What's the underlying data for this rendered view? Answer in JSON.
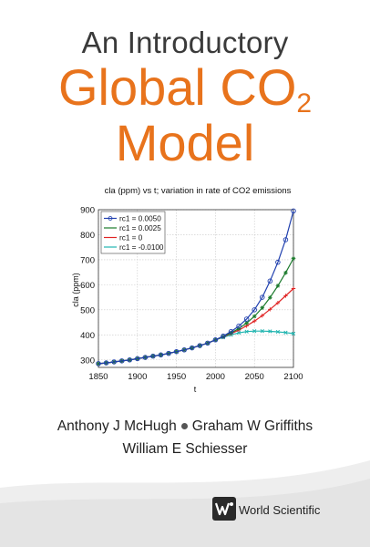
{
  "book": {
    "title_line1": "An Introductory",
    "title_line2": "Global CO",
    "title_subscript": "2",
    "title_line3": "Model",
    "authors": [
      "Anthony J McHugh",
      "Graham W Griffiths",
      "William E Schiesser"
    ],
    "publisher": "World Scientific"
  },
  "colors": {
    "title_accent": "#e8731c",
    "series_0050": "#1f3fae",
    "series_0025": "#1b7a2c",
    "series_0": "#e02424",
    "series_m0100": "#22b5b0"
  },
  "chart_data": {
    "type": "line",
    "title": "cla (ppm) vs t; variation in rate of CO2 emissions",
    "xlabel": "t",
    "ylabel": "cla (ppm)",
    "xlim": [
      1850,
      2100
    ],
    "ylim": [
      270,
      900
    ],
    "xticks": [
      1850,
      1900,
      1950,
      2000,
      2050,
      2100
    ],
    "yticks": [
      300,
      400,
      500,
      600,
      700,
      800,
      900
    ],
    "grid": true,
    "legend_position": "top-left",
    "x": [
      1850,
      1860,
      1870,
      1880,
      1890,
      1900,
      1910,
      1920,
      1930,
      1940,
      1950,
      1960,
      1970,
      1980,
      1990,
      2000,
      2010,
      2020,
      2030,
      2040,
      2050,
      2060,
      2070,
      2080,
      2090,
      2100
    ],
    "series": [
      {
        "name": "rc1 = 0.0050",
        "color": "#1f3fae",
        "marker": "o",
        "values": [
          285,
          288,
          292,
          296,
          300,
          305,
          310,
          315,
          320,
          326,
          333,
          340,
          348,
          357,
          367,
          380,
          395,
          413,
          435,
          463,
          500,
          550,
          615,
          690,
          780,
          895
        ]
      },
      {
        "name": "rc1 = 0.0025",
        "color": "#1b7a2c",
        "marker": "*",
        "values": [
          285,
          288,
          292,
          296,
          300,
          305,
          310,
          315,
          320,
          326,
          333,
          340,
          348,
          357,
          367,
          380,
          393,
          408,
          425,
          447,
          474,
          508,
          549,
          596,
          648,
          705
        ]
      },
      {
        "name": "rc1 = 0",
        "color": "#e02424",
        "marker": "+",
        "values": [
          285,
          288,
          292,
          296,
          300,
          305,
          310,
          315,
          320,
          326,
          333,
          340,
          348,
          357,
          367,
          380,
          392,
          405,
          419,
          436,
          455,
          477,
          502,
          528,
          556,
          585
        ]
      },
      {
        "name": "rc1 = -0.0100",
        "color": "#22b5b0",
        "marker": "x",
        "values": [
          285,
          288,
          292,
          296,
          300,
          305,
          310,
          315,
          320,
          326,
          333,
          340,
          348,
          357,
          367,
          380,
          390,
          400,
          408,
          413,
          415,
          415,
          414,
          412,
          409,
          405
        ]
      }
    ]
  }
}
